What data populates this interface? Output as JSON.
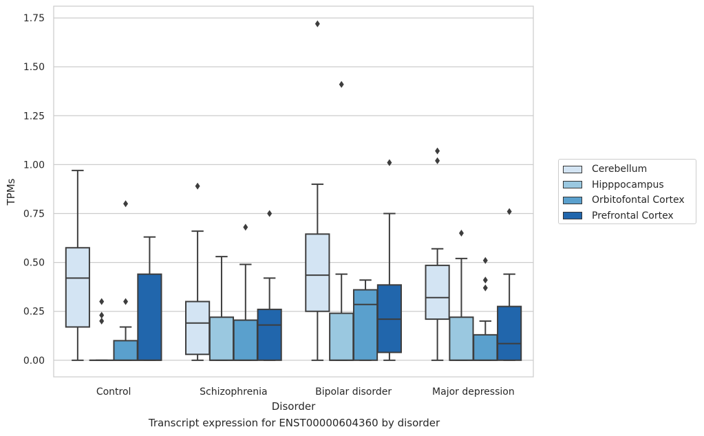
{
  "chart_data": {
    "type": "box",
    "title": "",
    "caption": "Transcript expression for ENST00000604360 by disorder",
    "xlabel": "Disorder",
    "ylabel": "TPMs",
    "ylim": [
      -0.085,
      1.81
    ],
    "yticks": [
      0.0,
      0.25,
      0.5,
      0.75,
      1.0,
      1.25,
      1.5,
      1.75
    ],
    "ytick_labels": [
      "0.00",
      "0.25",
      "0.50",
      "0.75",
      "1.00",
      "1.25",
      "1.50",
      "1.75"
    ],
    "grid": true,
    "legend_position": "right",
    "categories": [
      "Control",
      "Schizophrenia",
      "Bipolar disorder",
      "Major depression"
    ],
    "series": [
      {
        "name": "Cerebellum",
        "color": "#d3e4f3",
        "boxes": [
          {
            "min": 0.0,
            "q1": 0.17,
            "median": 0.42,
            "q3": 0.575,
            "max": 0.97,
            "outliers": []
          },
          {
            "min": 0.0,
            "q1": 0.03,
            "median": 0.19,
            "q3": 0.3,
            "max": 0.66,
            "outliers": [
              0.89
            ]
          },
          {
            "min": 0.0,
            "q1": 0.25,
            "median": 0.435,
            "q3": 0.645,
            "max": 0.9,
            "outliers": [
              1.72
            ]
          },
          {
            "min": 0.0,
            "q1": 0.21,
            "median": 0.32,
            "q3": 0.485,
            "max": 0.57,
            "outliers": [
              1.07,
              1.02
            ]
          }
        ]
      },
      {
        "name": "Hipppocampus",
        "color": "#9ac8e0",
        "boxes": [
          {
            "min": 0.0,
            "q1": 0.0,
            "median": 0.0,
            "q3": 0.0,
            "max": 0.0,
            "outliers": [
              0.3,
              0.23,
              0.2
            ]
          },
          {
            "min": 0.0,
            "q1": 0.0,
            "median": 0.0,
            "q3": 0.22,
            "max": 0.53,
            "outliers": []
          },
          {
            "min": 0.0,
            "q1": 0.0,
            "median": 0.0,
            "q3": 0.24,
            "max": 0.44,
            "outliers": [
              1.41
            ]
          },
          {
            "min": 0.0,
            "q1": 0.0,
            "median": 0.0,
            "q3": 0.22,
            "max": 0.52,
            "outliers": [
              0.65
            ]
          }
        ]
      },
      {
        "name": "Orbitofontal Cortex",
        "color": "#5aa0cd",
        "boxes": [
          {
            "min": 0.0,
            "q1": 0.0,
            "median": 0.0,
            "q3": 0.1,
            "max": 0.17,
            "outliers": [
              0.8,
              0.3
            ]
          },
          {
            "min": 0.0,
            "q1": 0.0,
            "median": 0.0,
            "q3": 0.205,
            "max": 0.49,
            "outliers": [
              0.68
            ]
          },
          {
            "min": 0.0,
            "q1": 0.0,
            "median": 0.285,
            "q3": 0.36,
            "max": 0.41,
            "outliers": []
          },
          {
            "min": 0.0,
            "q1": 0.0,
            "median": 0.0,
            "q3": 0.13,
            "max": 0.2,
            "outliers": [
              0.51,
              0.41,
              0.37
            ]
          }
        ]
      },
      {
        "name": "Prefrontal Cortex",
        "color": "#2166ac",
        "boxes": [
          {
            "min": 0.0,
            "q1": 0.0,
            "median": 0.0,
            "q3": 0.44,
            "max": 0.63,
            "outliers": []
          },
          {
            "min": 0.0,
            "q1": 0.0,
            "median": 0.18,
            "q3": 0.26,
            "max": 0.42,
            "outliers": [
              0.75
            ]
          },
          {
            "min": 0.0,
            "q1": 0.04,
            "median": 0.21,
            "q3": 0.385,
            "max": 0.75,
            "outliers": [
              1.01
            ]
          },
          {
            "min": 0.0,
            "q1": 0.0,
            "median": 0.085,
            "q3": 0.275,
            "max": 0.44,
            "outliers": [
              0.76
            ]
          }
        ]
      }
    ]
  }
}
